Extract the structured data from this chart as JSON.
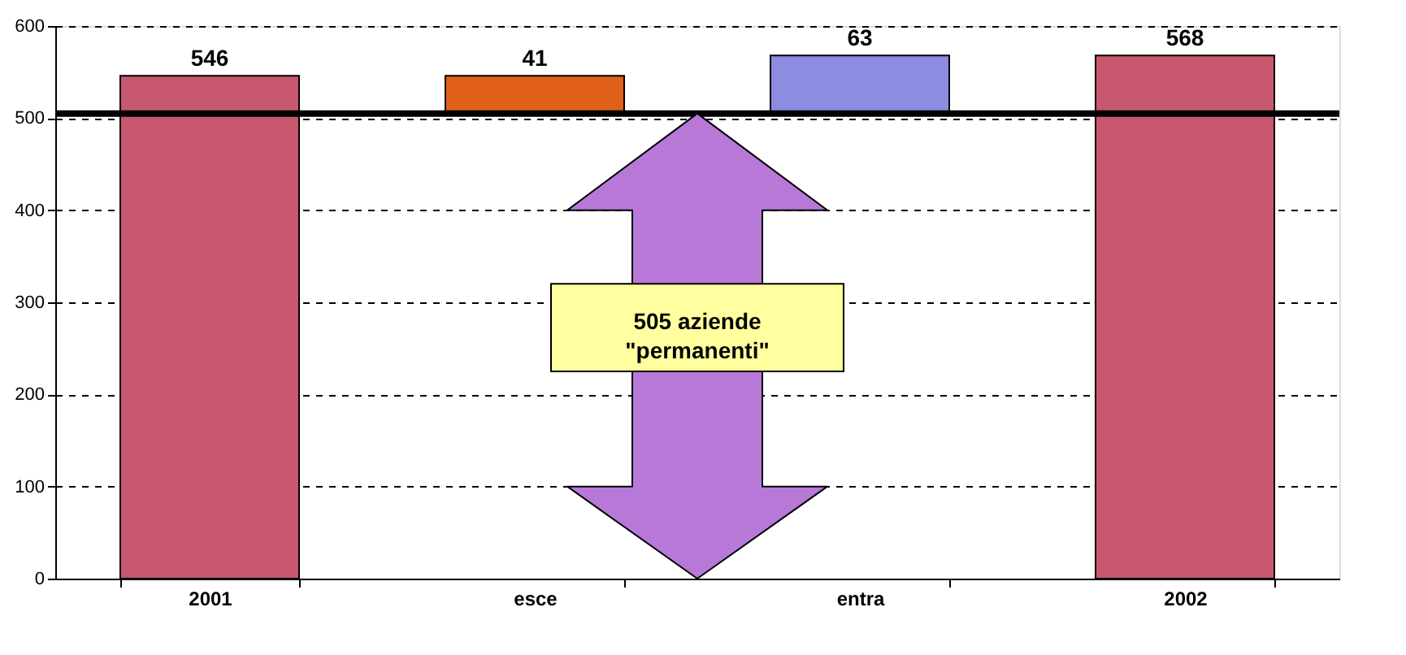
{
  "chart_data": {
    "type": "bar",
    "categories": [
      "2001",
      "esce",
      "entra",
      "2002"
    ],
    "values": [
      546,
      41,
      63,
      568
    ],
    "base": [
      0,
      505,
      505,
      0
    ],
    "colors": [
      "#c8586e",
      "#e0601a",
      "#8c8ce0",
      "#c8586e"
    ],
    "data_labels": true,
    "ylim": [
      0,
      600
    ],
    "yticks": [
      0,
      100,
      200,
      300,
      400,
      500,
      600
    ],
    "grid": "y",
    "ref_lines": [
      {
        "axis": "y",
        "value": 505,
        "color": "#000000"
      }
    ],
    "annotations": [
      "505 aziende\n\"permanenti\""
    ]
  }
}
